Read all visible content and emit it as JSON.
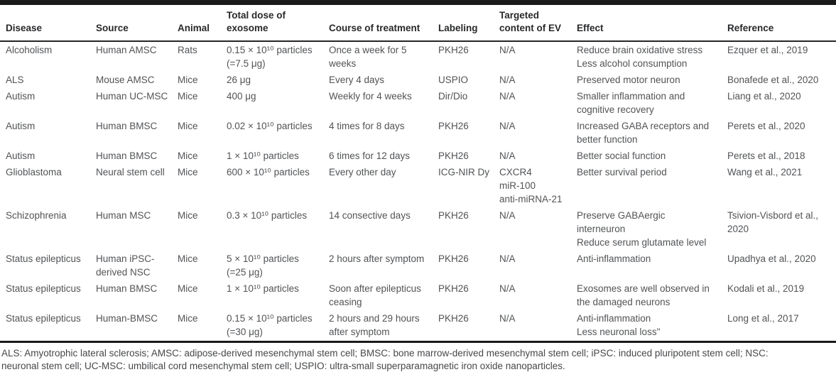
{
  "colors": {
    "rule": "#1a1a1a",
    "header_text": "#28292b",
    "body_text": "#515356",
    "background": "#ffffff"
  },
  "table": {
    "columns": [
      {
        "key": "disease",
        "label": "Disease"
      },
      {
        "key": "source",
        "label": "Source"
      },
      {
        "key": "animal",
        "label": "Animal"
      },
      {
        "key": "dose",
        "label": "Total dose of\nexosome"
      },
      {
        "key": "course",
        "label": "Course of treatment"
      },
      {
        "key": "labeling",
        "label": "Labeling"
      },
      {
        "key": "targeted",
        "label": "Targeted\ncontent of EV"
      },
      {
        "key": "effect",
        "label": "Effect"
      },
      {
        "key": "reference",
        "label": "Reference"
      }
    ],
    "rows": [
      {
        "disease": "Alcoholism",
        "source": "Human AMSC",
        "animal": "Rats",
        "dose": "0.15 × 10¹⁰ particles\n(=7.5 μg)",
        "course": "Once a week for 5\nweeks",
        "labeling": "PKH26",
        "targeted": "N/A",
        "effect": "Reduce brain oxidative stress\nLess alcohol consumption",
        "reference": "Ezquer et al., 2019"
      },
      {
        "disease": "ALS",
        "source": "Mouse AMSC",
        "animal": "Mice",
        "dose": "26 μg",
        "course": "Every 4 days",
        "labeling": "USPIO",
        "targeted": "N/A",
        "effect": "Preserved motor neuron",
        "reference": "Bonafede et al., 2020"
      },
      {
        "disease": "Autism",
        "source": "Human UC-MSC",
        "animal": "Mice",
        "dose": "400 μg",
        "course": "Weekly for 4 weeks",
        "labeling": "Dir/Dio",
        "targeted": "N/A",
        "effect": "Smaller inflammation and\ncognitive recovery",
        "reference": "Liang et al., 2020"
      },
      {
        "disease": "Autism",
        "source": "Human BMSC",
        "animal": "Mice",
        "dose": "0.02 × 10¹⁰ particles",
        "course": "4 times for 8 days",
        "labeling": "PKH26",
        "targeted": "N/A",
        "effect": "Increased GABA receptors and\nbetter function",
        "reference": "Perets et al., 2020"
      },
      {
        "disease": "Autism",
        "source": "Human BMSC",
        "animal": "Mice",
        "dose": "1 × 10¹⁰ particles",
        "course": "6 times for 12 days",
        "labeling": "PKH26",
        "targeted": "N/A",
        "effect": "Better social function",
        "reference": "Perets et al., 2018"
      },
      {
        "disease": "Glioblastoma",
        "source": "Neural stem cell",
        "animal": "Mice",
        "dose": "600 × 10¹⁰ particles",
        "course": "Every other day",
        "labeling": "ICG-NIR Dy",
        "targeted": "CXCR4\nmiR-100\nanti-miRNA-21",
        "effect": "Better survival period",
        "reference": "Wang et al., 2021"
      },
      {
        "disease": "Schizophrenia",
        "source": "Human MSC",
        "animal": "Mice",
        "dose": "0.3 × 10¹⁰ particles",
        "course": "14 consective days",
        "labeling": "PKH26",
        "targeted": "N/A",
        "effect": "Preserve GABAergic\ninterneuron\nReduce serum glutamate level",
        "reference": "Tsivion-Visbord et al.,\n2020"
      },
      {
        "disease": "Status epilepticus",
        "source": "Human iPSC-\nderived NSC",
        "animal": "Mice",
        "dose": "5 × 10¹⁰ particles\n(=25 μg)",
        "course": "2 hours after symptom",
        "labeling": "PKH26",
        "targeted": "N/A",
        "effect": "Anti-inflammation",
        "reference": "Upadhya et al., 2020"
      },
      {
        "disease": "Status epilepticus",
        "source": "Human BMSC",
        "animal": "Mice",
        "dose": "1 × 10¹⁰ particles",
        "course": "Soon after epilepticus\nceasing",
        "labeling": "PKH26",
        "targeted": "N/A",
        "effect": "Exosomes are well observed in\nthe damaged neurons",
        "reference": "Kodali et al., 2019"
      },
      {
        "disease": "Status epilepticus",
        "source": "Human-BMSC",
        "animal": "Mice",
        "dose": "0.15 × 10¹⁰ particles\n(=30 μg)",
        "course": "2 hours and 29 hours\nafter symptom",
        "labeling": "PKH26",
        "targeted": "N/A",
        "effect": "Anti-inflammation\nLess neuronal loss\"",
        "reference": "Long et al., 2017"
      }
    ]
  },
  "footnote": {
    "text": "ALS: Amyotrophic lateral sclerosis; AMSC: adipose-derived mesenchymal stem cell; BMSC: bone marrow-derived mesenchymal stem cell; iPSC: induced pluripotent stem cell; NSC:\nneuronal stem cell; UC-MSC: umbilical cord mesenchymal stem cell; USPIO: ultra-small superparamagnetic iron oxide nanoparticles."
  }
}
